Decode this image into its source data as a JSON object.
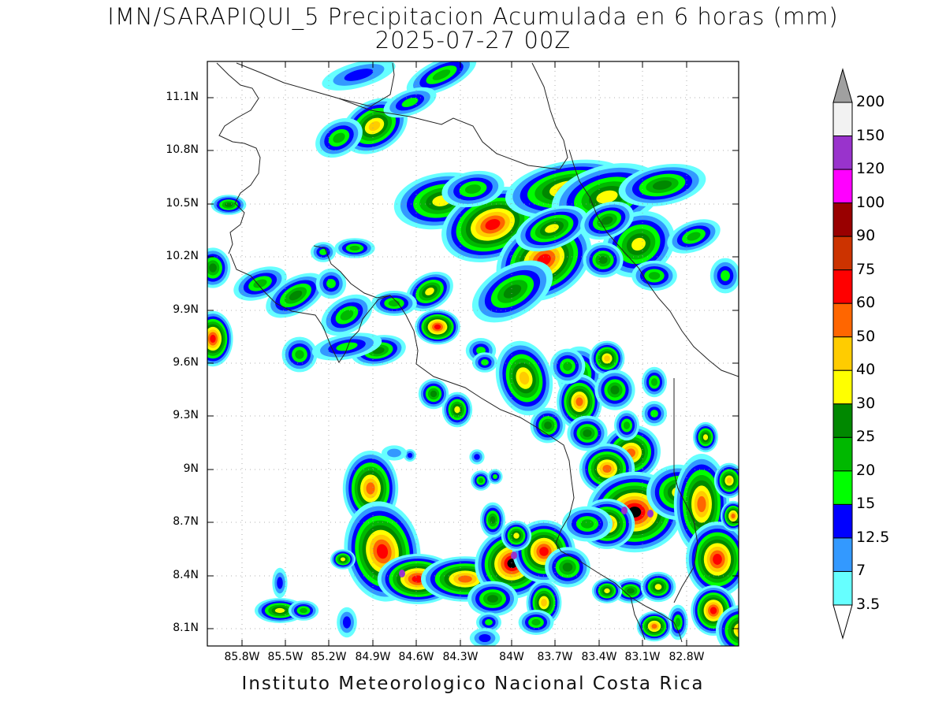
{
  "title_line1": "IMN/SARAPIQUI_5 Precipitacion Acumulada en 6 horas (mm)",
  "title_line2": "2025-07-27 00Z",
  "footer": "Instituto Meteorologico Nacional Costa Rica",
  "lat_ticks": [
    "11.1N",
    "10.8N",
    "10.5N",
    "10.2N",
    "9.9N",
    "9.6N",
    "9.3N",
    "9N",
    "8.7N",
    "8.4N",
    "8.1N"
  ],
  "lon_ticks": [
    "85.8W",
    "85.5W",
    "85.2W",
    "84.9W",
    "84.6W",
    "84.3W",
    "84W",
    "83.7W",
    "83.4W",
    "83.1W",
    "82.8W"
  ],
  "colorbar": {
    "labels": [
      "200",
      "150",
      "120",
      "100",
      "90",
      "75",
      "60",
      "50",
      "40",
      "30",
      "25",
      "20",
      "15",
      "12.5",
      "7",
      "3.5"
    ],
    "colors": [
      "#f2f2f2",
      "#9933cc",
      "#ff00ff",
      "#990000",
      "#cc3300",
      "#ff0000",
      "#ff6600",
      "#ffcc00",
      "#ffff00",
      "#008800",
      "#00b800",
      "#00ff00",
      "#0000ff",
      "#3399ff",
      "#66ffff"
    ],
    "over_color": "#a0a0a0",
    "under_color": "#ffffff"
  },
  "rain_colors": {
    "c1": "#66ffff",
    "c2": "#3399ff",
    "c3": "#0000ff",
    "c4": "#00ff00",
    "c5": "#00b800",
    "c6": "#008800",
    "c7": "#ffff00",
    "c8": "#ffcc00",
    "c9": "#ff6600",
    "c10": "#ff0000",
    "c11": "#9933cc"
  }
}
